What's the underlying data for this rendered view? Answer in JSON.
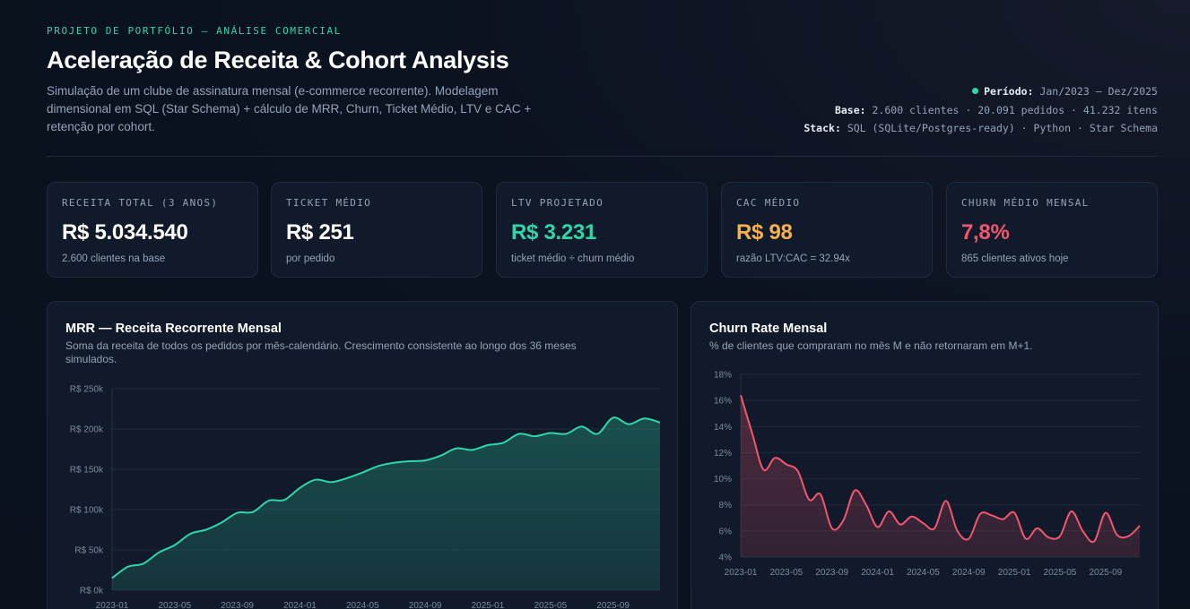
{
  "header": {
    "eyebrow": "PROJETO DE PORTFÓLIO — ANÁLISE COMERCIAL",
    "title": "Aceleração de Receita & Cohort Analysis",
    "subtitle": "Simulação de um clube de assinatura mensal (e-commerce recorrente). Modelagem dimensional em SQL (Star Schema) + cálculo de MRR, Churn, Ticket Médio, LTV e CAC + retenção por cohort.",
    "meta": {
      "periodo_label": "Período:",
      "periodo_value": "Jan/2023 — Dez/2025",
      "base_label": "Base:",
      "base_value": "2.600 clientes · 20.091 pedidos · 41.232 itens",
      "stack_label": "Stack:",
      "stack_value": "SQL (SQLite/Postgres-ready) · Python · Star Schema",
      "status_color": "#2fd6a9"
    }
  },
  "kpis": [
    {
      "label": "RECEITA TOTAL (3 ANOS)",
      "value": "R$ 5.034.540",
      "sub": "2.600 clientes na base",
      "color": "#ffffff"
    },
    {
      "label": "TICKET MÉDIO",
      "value": "R$ 251",
      "sub": "por pedido",
      "color": "#ffffff"
    },
    {
      "label": "LTV PROJETADO",
      "value": "R$ 3.231",
      "sub": "ticket médio ÷ churn médio",
      "color": "#2fd6a9"
    },
    {
      "label": "CAC MÉDIO",
      "value": "R$ 98",
      "sub": "razão LTV:CAC = 32.94x",
      "color": "#f5b14c"
    },
    {
      "label": "CHURN MÉDIO MENSAL",
      "value": "7,8%",
      "sub": "865 clientes ativos hoje",
      "color": "#f2566e"
    }
  ],
  "panels": {
    "mrr": {
      "title": "MRR — Receita Recorrente Mensal",
      "desc_line1": "Soma da receita de todos os pedidos por mês-calendário. Crescimento consistente ao longo dos 36 meses",
      "desc_line2": "simulados."
    },
    "churn": {
      "title": "Churn Rate Mensal",
      "desc": "% de clientes que compraram no mês M e não retornaram em M+1."
    }
  },
  "chart_data": [
    {
      "type": "area",
      "title": "MRR — Receita Recorrente Mensal",
      "color": "#2fd6a9",
      "x": [
        "2023-01",
        "2023-02",
        "2023-03",
        "2023-04",
        "2023-05",
        "2023-06",
        "2023-07",
        "2023-08",
        "2023-09",
        "2023-10",
        "2023-11",
        "2023-12",
        "2024-01",
        "2024-02",
        "2024-03",
        "2024-04",
        "2024-05",
        "2024-06",
        "2024-07",
        "2024-08",
        "2024-09",
        "2024-10",
        "2024-11",
        "2024-12",
        "2025-01",
        "2025-02",
        "2025-03",
        "2025-04",
        "2025-05",
        "2025-06",
        "2025-07",
        "2025-08",
        "2025-09",
        "2025-10",
        "2025-11",
        "2025-12"
      ],
      "y": [
        15000,
        29000,
        33000,
        47000,
        56000,
        70000,
        75000,
        84000,
        96000,
        97000,
        111000,
        112000,
        127000,
        137000,
        134000,
        139000,
        146000,
        154000,
        158000,
        160000,
        161000,
        167000,
        176000,
        174000,
        180000,
        183000,
        194000,
        191000,
        195000,
        194000,
        203000,
        194000,
        214000,
        206000,
        213000,
        208000
      ],
      "x_ticks": [
        "2023-01",
        "2023-05",
        "2023-09",
        "2024-01",
        "2024-05",
        "2024-09",
        "2025-01",
        "2025-05",
        "2025-09"
      ],
      "y_ticks": [
        {
          "v": 0,
          "label": "R$ 0k"
        },
        {
          "v": 50000,
          "label": "R$ 50k"
        },
        {
          "v": 100000,
          "label": "R$ 100k"
        },
        {
          "v": 150000,
          "label": "R$ 150k"
        },
        {
          "v": 200000,
          "label": "R$ 200k"
        },
        {
          "v": 250000,
          "label": "R$ 250k"
        }
      ],
      "ylim": [
        0,
        250000
      ],
      "grid": true
    },
    {
      "type": "area",
      "title": "Churn Rate Mensal",
      "color": "#f2566e",
      "x": [
        "2023-01",
        "2023-02",
        "2023-03",
        "2023-04",
        "2023-05",
        "2023-06",
        "2023-07",
        "2023-08",
        "2023-09",
        "2023-10",
        "2023-11",
        "2023-12",
        "2024-01",
        "2024-02",
        "2024-03",
        "2024-04",
        "2024-05",
        "2024-06",
        "2024-07",
        "2024-08",
        "2024-09",
        "2024-10",
        "2024-11",
        "2024-12",
        "2025-01",
        "2025-02",
        "2025-03",
        "2025-04",
        "2025-05",
        "2025-06",
        "2025-07",
        "2025-08",
        "2025-09",
        "2025-10",
        "2025-11",
        "2025-12"
      ],
      "y": [
        16.4,
        13.5,
        10.7,
        11.6,
        11.1,
        10.6,
        8.4,
        8.8,
        6.2,
        6.8,
        9.1,
        8.0,
        6.3,
        7.5,
        6.5,
        7.1,
        6.6,
        6.2,
        8.3,
        6.0,
        5.4,
        7.3,
        7.2,
        6.9,
        7.4,
        5.4,
        6.2,
        5.5,
        5.6,
        7.5,
        6.0,
        5.2,
        7.4,
        5.7,
        5.6,
        6.4
      ],
      "x_ticks": [
        "2023-01",
        "2023-05",
        "2023-09",
        "2024-01",
        "2024-05",
        "2024-09",
        "2025-01",
        "2025-05",
        "2025-09"
      ],
      "y_ticks": [
        {
          "v": 4,
          "label": "4%"
        },
        {
          "v": 6,
          "label": "6%"
        },
        {
          "v": 8,
          "label": "8%"
        },
        {
          "v": 10,
          "label": "10%"
        },
        {
          "v": 12,
          "label": "12%"
        },
        {
          "v": 14,
          "label": "14%"
        },
        {
          "v": 16,
          "label": "16%"
        },
        {
          "v": 18,
          "label": "18%"
        }
      ],
      "ylim": [
        4,
        18
      ],
      "grid": true
    }
  ]
}
